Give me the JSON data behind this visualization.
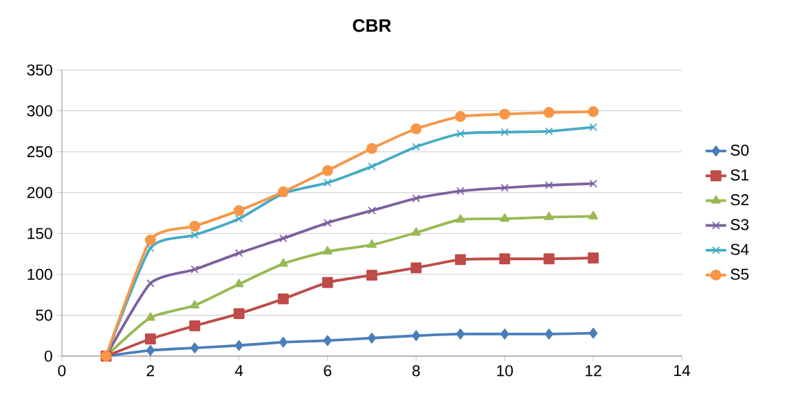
{
  "chart_data": {
    "type": "line",
    "title": "CBR",
    "x": [
      1,
      2,
      3,
      4,
      5,
      6,
      7,
      8,
      9,
      10,
      11,
      12
    ],
    "series": [
      {
        "name": "S0",
        "color": "#4a7ebb",
        "marker": "diamond",
        "values": [
          0,
          7,
          10,
          13,
          17,
          19,
          22,
          25,
          27,
          27,
          27,
          28
        ]
      },
      {
        "name": "S1",
        "color": "#be4b48",
        "marker": "square",
        "values": [
          0,
          21,
          37,
          52,
          70,
          90,
          99,
          108,
          118,
          119,
          119,
          120
        ]
      },
      {
        "name": "S2",
        "color": "#98b954",
        "marker": "triangle",
        "values": [
          0,
          47,
          62,
          88,
          113,
          128,
          136,
          151,
          167,
          168,
          170,
          171
        ]
      },
      {
        "name": "S3",
        "color": "#7d60a0",
        "marker": "cross",
        "values": [
          0,
          89,
          106,
          126,
          144,
          163,
          178,
          193,
          202,
          206,
          209,
          211
        ]
      },
      {
        "name": "S4",
        "color": "#46aac5",
        "marker": "cross",
        "values": [
          0,
          132,
          148,
          168,
          199,
          212,
          232,
          256,
          272,
          274,
          275,
          280
        ]
      },
      {
        "name": "S5",
        "color": "#f79646",
        "marker": "circle",
        "values": [
          0,
          142,
          159,
          178,
          201,
          227,
          254,
          278,
          293,
          296,
          298,
          299
        ]
      }
    ],
    "xlim": [
      0,
      14
    ],
    "xticks": [
      0,
      2,
      4,
      6,
      8,
      10,
      12,
      14
    ],
    "ylim": [
      0,
      350
    ],
    "yticks": [
      0,
      50,
      100,
      150,
      200,
      250,
      300,
      350
    ],
    "grid": "y",
    "legend": "right",
    "line_style": "solid"
  }
}
